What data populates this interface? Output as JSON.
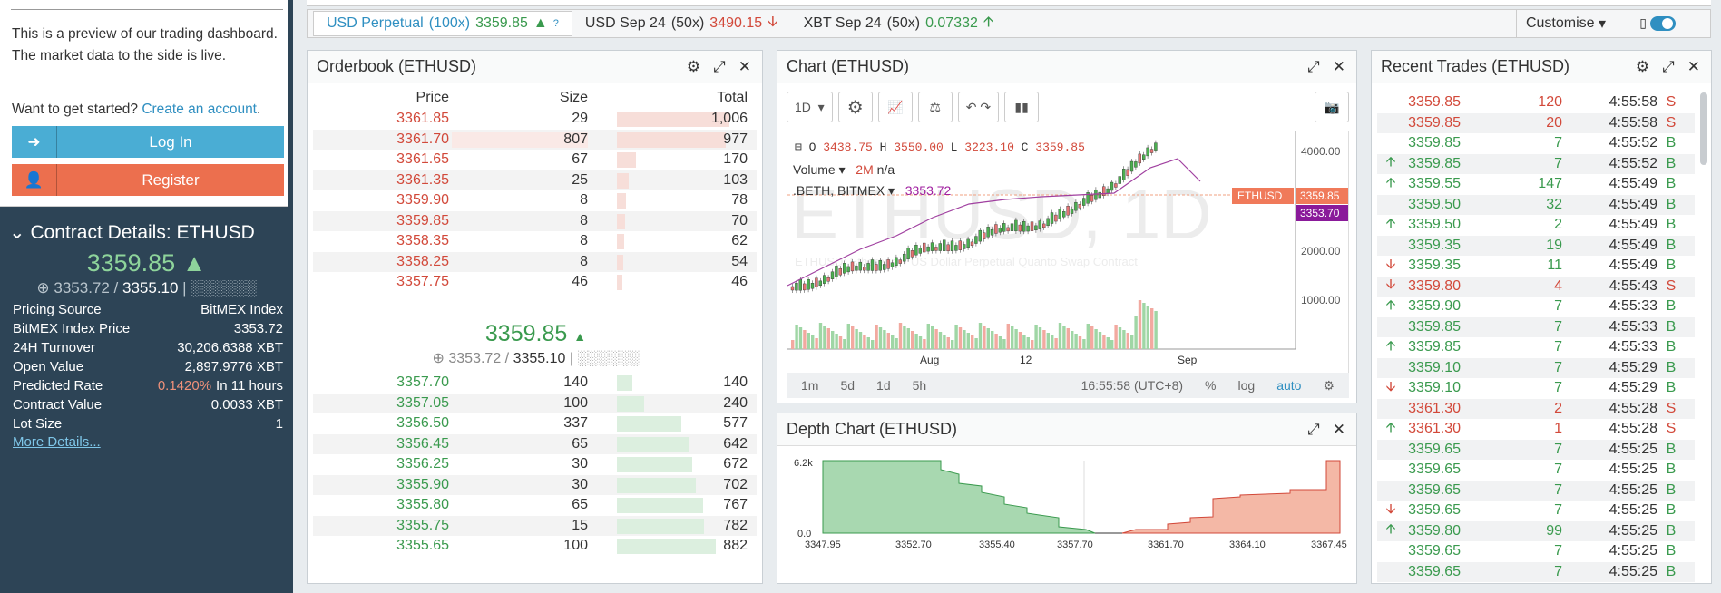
{
  "promo": {
    "text": "This is a preview of our trading dashboard. The market data to the side is live.",
    "cta_text": "Want to get started?",
    "cta_link": "Create an account",
    "login_label": "Log In",
    "register_label": "Register"
  },
  "contract": {
    "title": "Contract Details: ETHUSD",
    "price": "3359.85",
    "index": "3353.72",
    "mark": "3355.10",
    "rows": [
      {
        "label": "Pricing Source",
        "value": "BitMEX Index"
      },
      {
        "label": "BitMEX Index Price",
        "value": "3353.72"
      },
      {
        "label": "24H Turnover",
        "value": "30,206.6388 XBT"
      },
      {
        "label": "Open Value",
        "value": "2,897.9776 XBT"
      },
      {
        "label": "Predicted Rate",
        "value": "0.1420%",
        "extra": "In 11 hours"
      },
      {
        "label": "Contract Value",
        "value": "0.0033 XBT"
      },
      {
        "label": "Lot Size",
        "value": "1"
      }
    ],
    "more_label": "More Details..."
  },
  "instruments": [
    {
      "name": "USD Perpetual",
      "lev": "(100x)",
      "price": "3359.85",
      "dir": "up"
    },
    {
      "name": "USD Sep 24",
      "lev": "(50x)",
      "price": "3490.15",
      "dir": "down"
    },
    {
      "name": "XBT Sep 24",
      "lev": "(50x)",
      "price": "0.07332",
      "dir": "up"
    }
  ],
  "customise_label": "Customise",
  "orderbook": {
    "title": "Orderbook (ETHUSD)",
    "headers": [
      "Price",
      "Size",
      "Total"
    ],
    "asks": [
      [
        "3361.85",
        "29",
        "1,006"
      ],
      [
        "3361.70",
        "807",
        "977"
      ],
      [
        "3361.65",
        "67",
        "170"
      ],
      [
        "3361.35",
        "25",
        "103"
      ],
      [
        "3359.90",
        "8",
        "78"
      ],
      [
        "3359.85",
        "8",
        "70"
      ],
      [
        "3358.35",
        "8",
        "62"
      ],
      [
        "3358.25",
        "8",
        "54"
      ],
      [
        "3357.75",
        "46",
        "46"
      ]
    ],
    "mid_price": "3359.85",
    "mid_index": "3353.72",
    "mid_mark": "3355.10",
    "bids": [
      [
        "3357.70",
        "140",
        "140"
      ],
      [
        "3357.05",
        "100",
        "240"
      ],
      [
        "3356.50",
        "337",
        "577"
      ],
      [
        "3356.45",
        "65",
        "642"
      ],
      [
        "3356.25",
        "30",
        "672"
      ],
      [
        "3355.90",
        "30",
        "702"
      ],
      [
        "3355.80",
        "65",
        "767"
      ],
      [
        "3355.75",
        "15",
        "782"
      ],
      [
        "3355.65",
        "100",
        "882"
      ]
    ]
  },
  "chart": {
    "title": "Chart (ETHUSD)",
    "interval": "1D",
    "ohlc": {
      "o": "3438.75",
      "h": "3550.00",
      "l": "3223.10",
      "c": "3359.85"
    },
    "volume_label": "Volume",
    "volume_value": "2M",
    "volume_na": "n/a",
    "index_label": ".BETH, BITMEX",
    "index_value": "3353.72",
    "watermark": "ETHUSD, 1D",
    "subwatermark": "ETHUSD: Ethereum / US Dollar Perpetual Quanto Swap Contract",
    "last_tag": "3359.85",
    "symbol_tag": "ETHUSD",
    "index_tag": "3353.70",
    "y_ticks": [
      "4000.00",
      "2000.00",
      "1000.00"
    ],
    "x_ticks": [
      "Aug",
      "12",
      "Sep"
    ],
    "footer": [
      "1m",
      "5d",
      "1d",
      "5h"
    ],
    "time": "16:55:58 (UTC+8)",
    "footer_right": [
      "%",
      "log",
      "auto"
    ]
  },
  "depth": {
    "title": "Depth Chart (ETHUSD)",
    "y_ticks": [
      "6.2k",
      "0.0"
    ],
    "x_ticks": [
      "3347.95",
      "3352.70",
      "3355.40",
      "3357.70",
      "3361.70",
      "3364.10",
      "3367.45"
    ]
  },
  "trades": {
    "title": "Recent Trades (ETHUSD)",
    "rows": [
      [
        "",
        "3359.85",
        "120",
        "4:55:58",
        "S"
      ],
      [
        "",
        "3359.85",
        "20",
        "4:55:58",
        "S"
      ],
      [
        "",
        "3359.85",
        "7",
        "4:55:52",
        "B"
      ],
      [
        "up",
        "3359.85",
        "7",
        "4:55:52",
        "B"
      ],
      [
        "up",
        "3359.55",
        "147",
        "4:55:49",
        "B"
      ],
      [
        "",
        "3359.50",
        "32",
        "4:55:49",
        "B"
      ],
      [
        "up",
        "3359.50",
        "2",
        "4:55:49",
        "B"
      ],
      [
        "",
        "3359.35",
        "19",
        "4:55:49",
        "B"
      ],
      [
        "down",
        "3359.35",
        "11",
        "4:55:49",
        "B"
      ],
      [
        "down",
        "3359.80",
        "4",
        "4:55:43",
        "S"
      ],
      [
        "up",
        "3359.90",
        "7",
        "4:55:33",
        "B"
      ],
      [
        "",
        "3359.85",
        "7",
        "4:55:33",
        "B"
      ],
      [
        "up",
        "3359.85",
        "7",
        "4:55:33",
        "B"
      ],
      [
        "",
        "3359.10",
        "7",
        "4:55:29",
        "B"
      ],
      [
        "down",
        "3359.10",
        "7",
        "4:55:29",
        "B"
      ],
      [
        "",
        "3361.30",
        "2",
        "4:55:28",
        "S"
      ],
      [
        "up",
        "3361.30",
        "1",
        "4:55:28",
        "S"
      ],
      [
        "",
        "3359.65",
        "7",
        "4:55:25",
        "B"
      ],
      [
        "",
        "3359.65",
        "7",
        "4:55:25",
        "B"
      ],
      [
        "",
        "3359.65",
        "7",
        "4:55:25",
        "B"
      ],
      [
        "down",
        "3359.65",
        "7",
        "4:55:25",
        "B"
      ],
      [
        "up",
        "3359.80",
        "99",
        "4:55:25",
        "B"
      ],
      [
        "",
        "3359.65",
        "7",
        "4:55:25",
        "B"
      ],
      [
        "",
        "3359.65",
        "7",
        "4:55:25",
        "B"
      ]
    ]
  }
}
